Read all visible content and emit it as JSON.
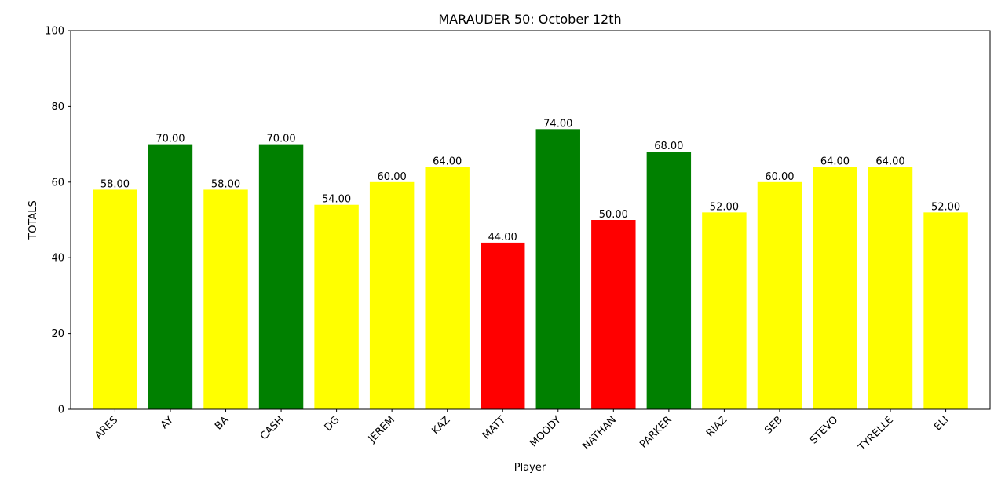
{
  "chart_data": {
    "type": "bar",
    "title": "MARAUDER 50: October 12th",
    "xlabel": "Player",
    "ylabel": "TOTALS",
    "ylim": [
      0,
      100
    ],
    "yticks": [
      "0",
      "20",
      "40",
      "60",
      "80",
      "100"
    ],
    "grid": false,
    "categories": [
      "ARES",
      "AY",
      "BA",
      "CASH",
      "DG",
      "JEREM",
      "KAZ",
      "MATT",
      "MOODY",
      "NATHAN",
      "PARKER",
      "RIAZ",
      "SEB",
      "STEVO",
      "TYRELLE",
      "ELI"
    ],
    "values": [
      58,
      70,
      58,
      70,
      54,
      60,
      64,
      44,
      74,
      50,
      68,
      52,
      60,
      64,
      64,
      52
    ],
    "value_labels": [
      "58.00",
      "70.00",
      "58.00",
      "70.00",
      "54.00",
      "60.00",
      "64.00",
      "44.00",
      "74.00",
      "50.00",
      "68.00",
      "52.00",
      "60.00",
      "64.00",
      "64.00",
      "52.00"
    ],
    "bar_colors": [
      "#ffff00",
      "#008000",
      "#ffff00",
      "#008000",
      "#ffff00",
      "#ffff00",
      "#ffff00",
      "#ff0000",
      "#008000",
      "#ff0000",
      "#008000",
      "#ffff00",
      "#ffff00",
      "#ffff00",
      "#ffff00",
      "#ffff00"
    ]
  }
}
